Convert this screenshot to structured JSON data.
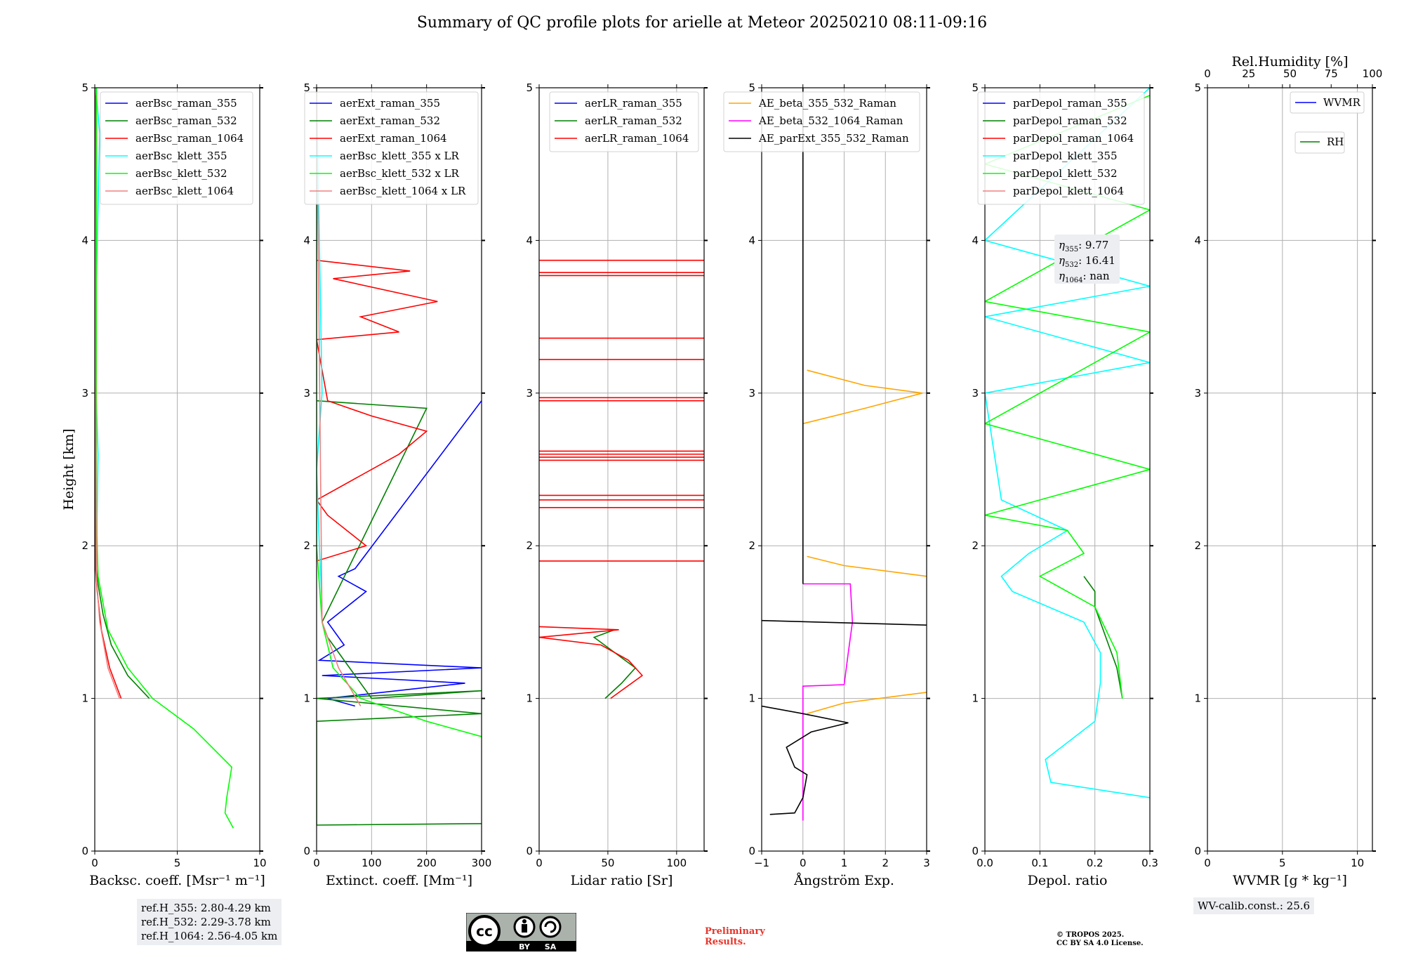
{
  "title": "Summary of QC profile plots for arielle at Meteor 20250210 08:11-09:16",
  "chart_data": [
    {
      "type": "line",
      "panel": "backscatter",
      "xlabel": "Backsc. coeff. [Msr⁻¹ m⁻¹]",
      "ylabel": "Height [km]",
      "xlim": [
        0,
        10
      ],
      "ylim": [
        0,
        5
      ],
      "xticks": [
        0,
        5,
        10
      ],
      "yticks": [
        0,
        1,
        2,
        3,
        4,
        5
      ],
      "legend": [
        "aerBsc_raman_355",
        "aerBsc_raman_532",
        "aerBsc_raman_1064",
        "aerBsc_klett_355",
        "aerBsc_klett_532",
        "aerBsc_klett_1064"
      ],
      "series": [
        {
          "name": "aerBsc_raman_355",
          "color": "#0000ff",
          "points": [
            [
              0,
              1.84
            ],
            [
              0,
              5
            ]
          ]
        },
        {
          "name": "aerBsc_raman_532",
          "color": "#008000",
          "points": [
            [
              3.3,
              1.0
            ],
            [
              2.0,
              1.15
            ],
            [
              1.0,
              1.35
            ],
            [
              0.5,
              1.55
            ],
            [
              0.2,
              1.75
            ],
            [
              0.1,
              1.85
            ],
            [
              0.05,
              3.0
            ],
            [
              0.1,
              5
            ]
          ]
        },
        {
          "name": "aerBsc_raman_1064",
          "color": "#ff0000",
          "points": [
            [
              1.6,
              1.0
            ],
            [
              0.9,
              1.2
            ],
            [
              0.4,
              1.45
            ],
            [
              0.15,
              1.7
            ],
            [
              0.05,
              1.85
            ],
            [
              0.05,
              2.95
            ],
            [
              0.1,
              3.0
            ],
            [
              0.0,
              3.05
            ],
            [
              0.05,
              5
            ]
          ]
        },
        {
          "name": "aerBsc_klett_355",
          "color": "#00ffff",
          "points": [
            [
              0.1,
              1.8
            ],
            [
              0.2,
              2.6
            ],
            [
              0.0,
              3.3
            ],
            [
              0.3,
              4.7
            ],
            [
              0.05,
              5
            ]
          ]
        },
        {
          "name": "aerBsc_klett_532",
          "color": "#00ff00",
          "points": [
            [
              8.4,
              0.15
            ],
            [
              7.9,
              0.25
            ],
            [
              8.0,
              0.35
            ],
            [
              8.3,
              0.55
            ],
            [
              6.0,
              0.8
            ],
            [
              3.5,
              1.0
            ],
            [
              2.0,
              1.2
            ],
            [
              0.8,
              1.45
            ],
            [
              0.2,
              1.8
            ],
            [
              0.1,
              2.2
            ],
            [
              0.1,
              5
            ]
          ]
        },
        {
          "name": "aerBsc_klett_1064",
          "color": "#f08080",
          "points": [
            [
              1.5,
              1.0
            ],
            [
              0.8,
              1.2
            ],
            [
              0.3,
              1.5
            ],
            [
              0.1,
              1.8
            ],
            [
              0,
              5
            ]
          ]
        }
      ]
    },
    {
      "type": "line",
      "panel": "extinction",
      "xlabel": "Extinct. coeff. [Mm⁻¹]",
      "xlim": [
        0,
        300
      ],
      "ylim": [
        0,
        5
      ],
      "xticks": [
        0,
        100,
        200,
        300
      ],
      "yticks": [
        0,
        1,
        2,
        3,
        4,
        5
      ],
      "legend": [
        "aerExt_raman_355",
        "aerExt_raman_532",
        "aerExt_raman_1064",
        "aerBsc_klett_355 x LR",
        "aerBsc_klett_532 x LR",
        "aerBsc_klett_1064 x LR"
      ],
      "series": [
        {
          "name": "aerExt_raman_355",
          "color": "#0000ff",
          "points": [
            [
              70,
              0.95
            ],
            [
              20,
              1.0
            ],
            [
              270,
              1.1
            ],
            [
              10,
              1.15
            ],
            [
              300,
              1.2
            ],
            [
              5,
              1.25
            ],
            [
              50,
              1.35
            ],
            [
              20,
              1.5
            ],
            [
              90,
              1.7
            ],
            [
              40,
              1.8
            ],
            [
              70,
              1.85
            ],
            [
              300,
              2.95
            ]
          ]
        },
        {
          "name": "aerExt_raman_532",
          "color": "#008000",
          "points": [
            [
              300,
              0.18
            ],
            [
              0,
              0.17
            ],
            [
              0,
              0.85
            ],
            [
              300,
              0.9
            ],
            [
              0,
              1.0
            ],
            [
              300,
              1.05
            ],
            [
              100,
              1.0
            ],
            [
              60,
              1.2
            ],
            [
              20,
              1.4
            ],
            [
              10,
              1.5
            ],
            [
              200,
              2.9
            ],
            [
              0,
              2.95
            ]
          ]
        },
        {
          "name": "aerExt_raman_1064",
          "color": "#ff0000",
          "points": [
            [
              0,
              1.9
            ],
            [
              90,
              2.0
            ],
            [
              20,
              2.2
            ],
            [
              0,
              2.3
            ],
            [
              150,
              2.6
            ],
            [
              200,
              2.75
            ],
            [
              100,
              2.85
            ],
            [
              20,
              2.95
            ],
            [
              0,
              3.35
            ],
            [
              150,
              3.4
            ],
            [
              80,
              3.5
            ],
            [
              220,
              3.6
            ],
            [
              30,
              3.75
            ],
            [
              170,
              3.8
            ],
            [
              0,
              3.87
            ]
          ]
        },
        {
          "name": "aerBsc_klett_355 x LR",
          "color": "#00ffff",
          "points": [
            [
              10,
              1.6
            ],
            [
              5,
              2.0
            ],
            [
              0,
              2.5
            ],
            [
              10,
              3.0
            ],
            [
              0,
              5
            ]
          ]
        },
        {
          "name": "aerBsc_klett_532 x LR",
          "color": "#00ff00",
          "points": [
            [
              300,
              0.75
            ],
            [
              200,
              0.85
            ],
            [
              80,
              1.0
            ],
            [
              30,
              1.2
            ],
            [
              10,
              1.5
            ],
            [
              0,
              2.0
            ],
            [
              0,
              5
            ]
          ]
        },
        {
          "name": "aerBsc_klett_1064 x LR",
          "color": "#f08080",
          "points": [
            [
              80,
              0.95
            ],
            [
              40,
              1.2
            ],
            [
              10,
              1.5
            ],
            [
              0,
              5
            ]
          ]
        }
      ]
    },
    {
      "type": "line",
      "panel": "lidar_ratio",
      "xlabel": "Lidar ratio [Sr]",
      "xlim": [
        0,
        120
      ],
      "ylim": [
        0,
        5
      ],
      "xticks": [
        0,
        50,
        100
      ],
      "yticks": [
        0,
        1,
        2,
        3,
        4,
        5
      ],
      "legend": [
        "aerLR_raman_355",
        "aerLR_raman_532",
        "aerLR_raman_1064"
      ],
      "series": [
        {
          "name": "aerLR_raman_532",
          "color": "#008000",
          "points": [
            [
              48,
              1.0
            ],
            [
              60,
              1.1
            ],
            [
              70,
              1.2
            ],
            [
              55,
              1.3
            ],
            [
              40,
              1.4
            ],
            [
              55,
              1.45
            ]
          ]
        },
        {
          "name": "aerLR_raman_1064",
          "color": "#ff0000",
          "points": [
            [
              52,
              1.0
            ],
            [
              75,
              1.15
            ],
            [
              65,
              1.25
            ],
            [
              45,
              1.35
            ],
            [
              0,
              1.4
            ],
            [
              58,
              1.45
            ],
            [
              0,
              1.47
            ]
          ]
        }
      ],
      "hlines_1064": [
        1.9,
        2.25,
        2.3,
        2.33,
        2.56,
        2.58,
        2.6,
        2.62,
        2.95,
        2.97,
        3.22,
        3.36,
        3.77,
        3.79,
        3.87
      ]
    },
    {
      "type": "line",
      "panel": "angstrom",
      "xlabel": "Ångström Exp.",
      "xlim": [
        -1,
        3
      ],
      "ylim": [
        0,
        5
      ],
      "xticks": [
        -1,
        0,
        1,
        2,
        3
      ],
      "yticks": [
        0,
        1,
        2,
        3,
        4,
        5
      ],
      "legend": [
        "AE_beta_355_532_Raman",
        "AE_beta_532_1064_Raman",
        "AE_parExt_355_532_Raman"
      ],
      "series": [
        {
          "name": "AE_beta_355_532_Raman",
          "color": "#ffa500",
          "points": [
            [
              0.1,
              0.9
            ],
            [
              1.0,
              0.97
            ],
            [
              3.0,
              1.04
            ]
          ]
        },
        {
          "name": "AE_beta_355_532_Raman",
          "color": "#ffa500",
          "points": [
            [
              0.1,
              1.93
            ],
            [
              1.0,
              1.87
            ],
            [
              3.0,
              1.8
            ]
          ]
        },
        {
          "name": "AE_beta_355_532_Raman",
          "color": "#ffa500",
          "points": [
            [
              0,
              2.8
            ],
            [
              1.5,
              2.9
            ],
            [
              2.9,
              3.0
            ],
            [
              1.5,
              3.05
            ],
            [
              0.1,
              3.15
            ]
          ]
        },
        {
          "name": "AE_beta_532_1064_Raman",
          "color": "#ff00ff",
          "points": [
            [
              0,
              0.2
            ],
            [
              0,
              1.08
            ],
            [
              1.0,
              1.09
            ],
            [
              1.1,
              1.3
            ],
            [
              1.2,
              1.5
            ],
            [
              1.15,
              1.75
            ],
            [
              0,
              1.75
            ]
          ]
        },
        {
          "name": "AE_parExt_355_532_Raman",
          "color": "#000000",
          "points": [
            [
              -0.8,
              0.24
            ],
            [
              -0.2,
              0.25
            ],
            [
              0,
              0.35
            ],
            [
              0.1,
              0.5
            ],
            [
              -0.2,
              0.55
            ],
            [
              -0.4,
              0.68
            ],
            [
              0.2,
              0.78
            ],
            [
              1.1,
              0.84
            ],
            [
              0,
              0.9
            ],
            [
              -1.0,
              0.95
            ]
          ]
        },
        {
          "name": "AE_parExt_355_532_Raman",
          "color": "#000000",
          "points": [
            [
              -1.0,
              1.51
            ],
            [
              3.0,
              1.48
            ]
          ]
        },
        {
          "name": "AE_parExt_355_532_Raman",
          "color": "#000000",
          "points": [
            [
              0,
              1.75
            ],
            [
              0,
              5
            ]
          ]
        }
      ]
    },
    {
      "type": "line",
      "panel": "depol",
      "xlabel": "Depol. ratio",
      "xlim": [
        0,
        0.3
      ],
      "ylim": [
        0,
        5
      ],
      "xticks": [
        0.0,
        0.1,
        0.2,
        0.3
      ],
      "yticks": [
        0,
        1,
        2,
        3,
        4,
        5
      ],
      "legend": [
        "parDepol_raman_355",
        "parDepol_raman_532",
        "parDepol_raman_1064",
        "parDepol_klett_355",
        "parDepol_klett_532",
        "parDepol_klett_1064"
      ],
      "annotation": [
        "η355: 9.77",
        "η532: 16.41",
        "η1064: nan"
      ],
      "series": [
        {
          "name": "parDepol_raman_532",
          "color": "#008000",
          "points": [
            [
              0.25,
              1.0
            ],
            [
              0.24,
              1.2
            ],
            [
              0.22,
              1.4
            ],
            [
              0.2,
              1.6
            ],
            [
              0.2,
              1.7
            ],
            [
              0.18,
              1.8
            ]
          ]
        },
        {
          "name": "parDepol_klett_355",
          "color": "#00ffff",
          "points": [
            [
              0.3,
              0.35
            ],
            [
              0.12,
              0.45
            ],
            [
              0.11,
              0.6
            ],
            [
              0.2,
              0.85
            ],
            [
              0.21,
              1.1
            ],
            [
              0.21,
              1.3
            ],
            [
              0.18,
              1.5
            ],
            [
              0.05,
              1.7
            ],
            [
              0.03,
              1.8
            ],
            [
              0.08,
              1.95
            ],
            [
              0.15,
              2.1
            ],
            [
              0.03,
              2.3
            ],
            [
              0.0,
              3.0
            ],
            [
              0.3,
              3.2
            ],
            [
              0.0,
              3.5
            ],
            [
              0.3,
              3.7
            ],
            [
              0.0,
              4.0
            ],
            [
              0.3,
              5.0
            ]
          ]
        },
        {
          "name": "parDepol_klett_532",
          "color": "#00ff00",
          "points": [
            [
              0.25,
              1.0
            ],
            [
              0.24,
              1.3
            ],
            [
              0.2,
              1.6
            ],
            [
              0.1,
              1.8
            ],
            [
              0.18,
              1.95
            ],
            [
              0.15,
              2.1
            ],
            [
              0.0,
              2.2
            ],
            [
              0.3,
              2.5
            ],
            [
              0.0,
              2.8
            ],
            [
              0.3,
              3.4
            ],
            [
              0.0,
              3.6
            ],
            [
              0.3,
              4.2
            ],
            [
              0.0,
              4.5
            ],
            [
              0.3,
              4.95
            ]
          ]
        }
      ]
    },
    {
      "type": "line",
      "panel": "wvmr",
      "xlabel": "WVMR [g * kg⁻¹]",
      "x2label": "Rel.Humidity [%]",
      "xlim": [
        0,
        11
      ],
      "ylim": [
        0,
        5
      ],
      "xticks": [
        0,
        5,
        10
      ],
      "x2ticks": [
        0,
        25,
        50,
        75,
        100
      ],
      "yticks": [
        0,
        1,
        2,
        3,
        4,
        5
      ],
      "legend": [
        "WVMR",
        "RH"
      ],
      "series": []
    }
  ],
  "ref_heights": [
    "ref.H_355: 2.80-4.29 km",
    "ref.H_532: 2.29-3.78 km",
    "ref.H_1064: 2.56-4.05 km"
  ],
  "wv_calib": "WV-calib.const.: 25.6",
  "preliminary": [
    "Preliminary",
    "Results."
  ],
  "copyright": [
    "© TROPOS 2025.",
    "CC BY SA 4.0 License."
  ],
  "license_badge": {
    "by": "BY",
    "sa": "SA",
    "cc": "cc"
  }
}
